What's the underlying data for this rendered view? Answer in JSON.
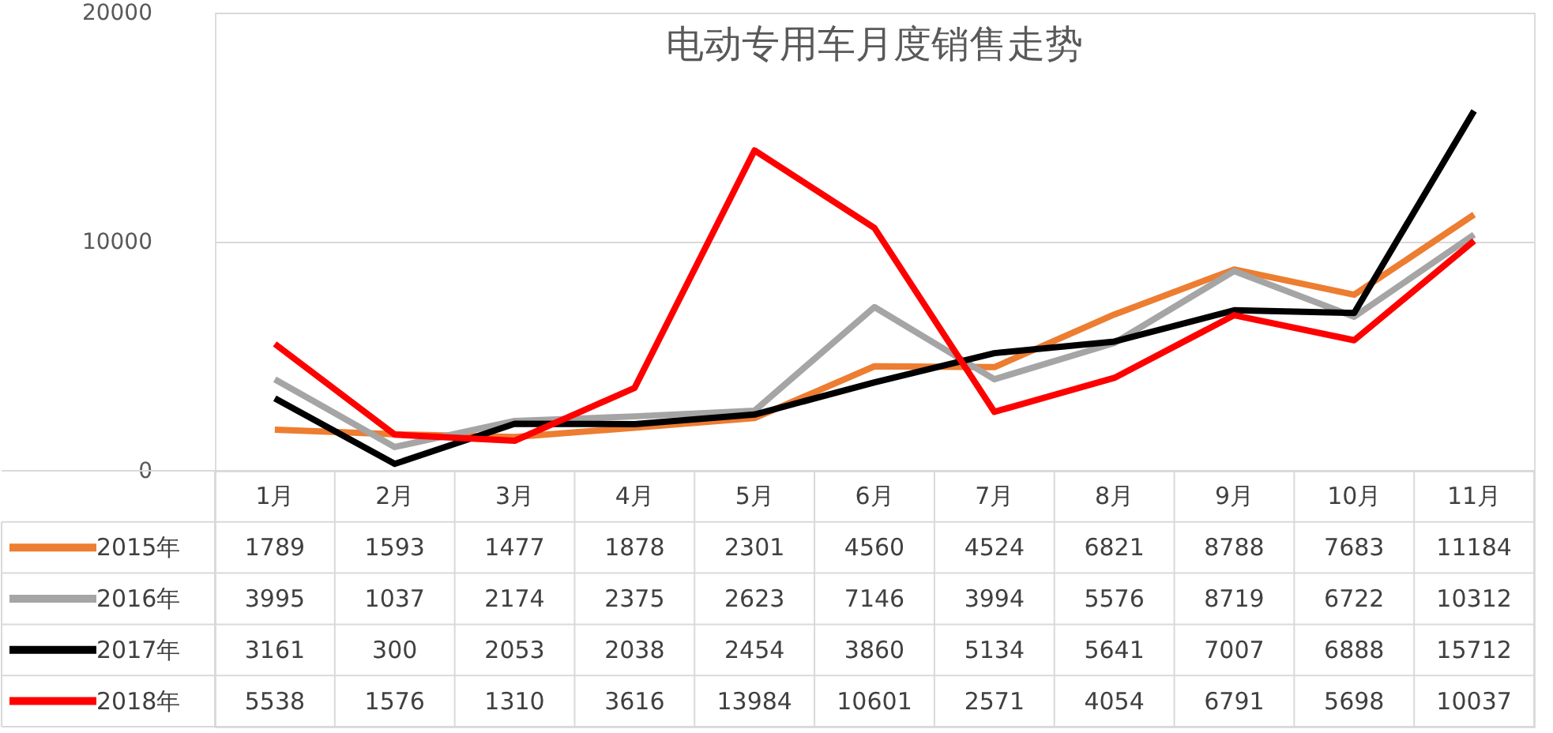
{
  "chart_data": {
    "type": "line",
    "title": "电动专用车月度销售走势",
    "categories": [
      "1月",
      "2月",
      "3月",
      "4月",
      "5月",
      "6月",
      "7月",
      "8月",
      "9月",
      "10月",
      "11月"
    ],
    "series": [
      {
        "name": "2015年",
        "color": "#ed7d31",
        "values": [
          1789,
          1593,
          1477,
          1878,
          2301,
          4560,
          4524,
          6821,
          8788,
          7683,
          11184
        ]
      },
      {
        "name": "2016年",
        "color": "#a5a5a5",
        "values": [
          3995,
          1037,
          2174,
          2375,
          2623,
          7146,
          3994,
          5576,
          8719,
          6722,
          10312
        ]
      },
      {
        "name": "2017年",
        "color": "#000000",
        "values": [
          3161,
          300,
          2053,
          2038,
          2454,
          3860,
          5134,
          5641,
          7007,
          6888,
          15712
        ]
      },
      {
        "name": "2018年",
        "color": "#ff0000",
        "values": [
          5538,
          1576,
          1310,
          3616,
          13984,
          10601,
          2571,
          4054,
          6791,
          5698,
          10037
        ]
      }
    ],
    "ylim": [
      0,
      20000
    ],
    "yticks": [
      0,
      10000,
      20000
    ],
    "grid": "y",
    "data_labels": true,
    "legend": "bottom",
    "marker": "none",
    "line_style": "solid"
  }
}
